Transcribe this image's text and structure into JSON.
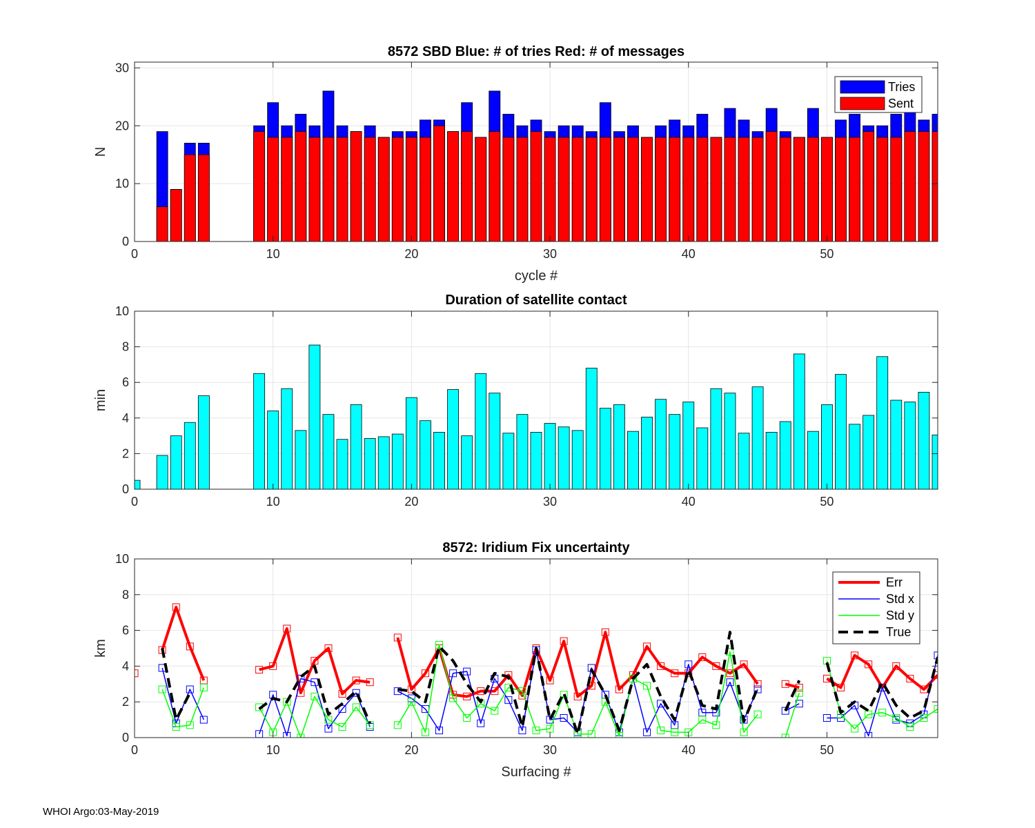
{
  "footer": "WHOI Argo:03-May-2019",
  "chart_data": [
    {
      "type": "bar",
      "stacking": "overlay",
      "title": "8572 SBD  Blue: # of tries   Red: # of messages",
      "xlabel": "cycle #",
      "ylabel": "N",
      "xlim": [
        0,
        58
      ],
      "ylim": [
        0,
        31
      ],
      "xticks": [
        0,
        10,
        20,
        30,
        40,
        50
      ],
      "yticks": [
        0,
        10,
        20,
        30
      ],
      "grid": true,
      "legend_position": "top-right",
      "colors": {
        "tries": "#0000ff",
        "sent": "#ff0000"
      },
      "x": [
        2,
        3,
        4,
        5,
        9,
        10,
        11,
        12,
        13,
        14,
        15,
        16,
        17,
        18,
        19,
        20,
        21,
        22,
        23,
        24,
        25,
        26,
        27,
        28,
        29,
        30,
        31,
        32,
        33,
        34,
        35,
        36,
        37,
        38,
        39,
        40,
        41,
        42,
        43,
        44,
        45,
        46,
        47,
        48,
        49,
        50,
        51,
        52,
        53,
        54,
        55,
        56,
        57,
        58
      ],
      "series": [
        {
          "name": "Tries",
          "color": "#0000ff",
          "values": [
            19,
            9,
            17,
            17,
            20,
            24,
            20,
            22,
            20,
            26,
            20,
            19,
            20,
            18,
            19,
            19,
            21,
            21,
            19,
            24,
            18,
            26,
            22,
            20,
            21,
            19,
            20,
            20,
            19,
            24,
            19,
            20,
            18,
            20,
            21,
            20,
            22,
            18,
            23,
            21,
            19,
            23,
            19,
            18,
            23,
            18,
            21,
            22,
            20,
            20,
            22,
            23,
            21,
            22
          ]
        },
        {
          "name": "Sent",
          "color": "#ff0000",
          "values": [
            6,
            9,
            15,
            15,
            19,
            18,
            18,
            19,
            18,
            18,
            18,
            19,
            18,
            18,
            18,
            18,
            18,
            20,
            19,
            19,
            18,
            19,
            18,
            18,
            19,
            18,
            18,
            18,
            18,
            18,
            18,
            18,
            18,
            18,
            18,
            18,
            18,
            18,
            18,
            18,
            18,
            19,
            18,
            18,
            18,
            18,
            18,
            18,
            19,
            18,
            18,
            19,
            19,
            19
          ]
        }
      ]
    },
    {
      "type": "bar",
      "title": "Duration of satellite contact",
      "xlabel": "",
      "ylabel": "min",
      "xlim": [
        0,
        58
      ],
      "ylim": [
        0,
        10
      ],
      "xticks": [
        0,
        10,
        20,
        30,
        40,
        50
      ],
      "yticks": [
        0,
        2,
        4,
        6,
        8,
        10
      ],
      "grid": true,
      "color": "#00ffff",
      "x": [
        0,
        2,
        3,
        4,
        5,
        9,
        10,
        11,
        12,
        13,
        14,
        15,
        16,
        17,
        18,
        19,
        20,
        21,
        22,
        23,
        24,
        25,
        26,
        27,
        28,
        29,
        30,
        31,
        32,
        33,
        34,
        35,
        36,
        37,
        38,
        39,
        40,
        41,
        42,
        43,
        44,
        45,
        46,
        47,
        48,
        49,
        50,
        51,
        52,
        53,
        54,
        55,
        56,
        57,
        58
      ],
      "values": [
        0.5,
        1.9,
        3.0,
        3.75,
        5.25,
        6.5,
        4.4,
        5.65,
        3.3,
        8.1,
        4.2,
        2.8,
        4.75,
        2.85,
        2.95,
        3.1,
        5.15,
        3.85,
        3.2,
        5.6,
        3.0,
        6.5,
        5.4,
        3.15,
        4.2,
        3.2,
        3.7,
        3.5,
        3.3,
        6.8,
        4.55,
        4.75,
        3.25,
        4.05,
        5.05,
        4.2,
        4.9,
        3.45,
        5.65,
        5.4,
        3.15,
        5.75,
        3.2,
        3.8,
        7.6,
        3.25,
        4.75,
        6.45,
        3.65,
        4.15,
        7.45,
        5.0,
        4.9,
        5.45,
        3.05
      ]
    },
    {
      "type": "line",
      "title": "8572: Iridium Fix uncertainty",
      "xlabel": "Surfacing #",
      "ylabel": "km",
      "xlim": [
        0,
        58
      ],
      "ylim": [
        0,
        10
      ],
      "xticks": [
        0,
        10,
        20,
        30,
        40,
        50
      ],
      "yticks": [
        0,
        2,
        4,
        6,
        8,
        10
      ],
      "grid": true,
      "legend_position": "top-right",
      "series": [
        {
          "name": "Err",
          "color": "#ff0000",
          "style": "solid",
          "width": 4,
          "markers": true,
          "values": [
            3.6,
            null,
            4.9,
            7.3,
            5.1,
            3.2,
            null,
            null,
            null,
            3.8,
            4.0,
            6.1,
            2.5,
            4.3,
            5.0,
            2.45,
            3.2,
            3.1,
            null,
            5.6,
            2.7,
            3.6,
            5.0,
            2.4,
            2.3,
            2.6,
            2.6,
            3.5,
            2.35,
            5.0,
            3.2,
            5.4,
            2.3,
            2.9,
            5.9,
            2.7,
            3.5,
            5.1,
            4.0,
            3.6,
            3.6,
            4.5,
            4.0,
            3.6,
            4.1,
            3.0,
            null,
            3.0,
            2.8,
            null,
            3.3,
            2.8,
            4.6,
            4.1,
            2.8,
            4.0,
            3.3,
            2.7,
            3.5
          ]
        },
        {
          "name": "Std x",
          "color": "#0000ff",
          "style": "solid",
          "width": 1.5,
          "markers": true,
          "values": [
            null,
            null,
            3.9,
            0.8,
            2.7,
            1.0,
            null,
            null,
            null,
            0.2,
            2.4,
            0.1,
            3.3,
            3.1,
            0.5,
            1.6,
            2.5,
            0.6,
            null,
            2.6,
            2.2,
            1.6,
            0.4,
            3.6,
            3.7,
            0.8,
            3.3,
            2.1,
            0.4,
            4.9,
            1.0,
            1.1,
            0.3,
            3.9,
            2.4,
            0.3,
            3.3,
            0.3,
            1.9,
            0.7,
            4.1,
            1.4,
            1.4,
            3.1,
            1.0,
            2.7,
            null,
            1.5,
            1.9,
            null,
            1.1,
            1.1,
            1.8,
            0.1,
            2.8,
            1.0,
            0.8,
            1.3,
            4.6
          ]
        },
        {
          "name": "Std y",
          "color": "#00ff00",
          "style": "solid",
          "width": 1.5,
          "markers": true,
          "values": [
            null,
            null,
            2.7,
            0.6,
            0.7,
            2.8,
            null,
            null,
            null,
            1.7,
            0.3,
            2.0,
            0.0,
            2.3,
            1.0,
            0.6,
            1.7,
            0.7,
            null,
            0.7,
            2.0,
            0.3,
            5.2,
            2.2,
            1.1,
            1.9,
            1.5,
            2.8,
            2.6,
            0.4,
            0.5,
            2.4,
            0.2,
            0.2,
            2.0,
            0.1,
            3.3,
            2.9,
            0.4,
            0.3,
            0.3,
            1.0,
            0.7,
            4.8,
            0.3,
            1.3,
            null,
            0.0,
            2.5,
            null,
            4.3,
            1.3,
            0.5,
            1.3,
            1.4,
            1.1,
            0.6,
            1.1,
            1.6
          ]
        },
        {
          "name": "True",
          "color": "#000000",
          "style": "dashed",
          "width": 4,
          "markers": false,
          "values": [
            null,
            null,
            5.0,
            1.0,
            2.5,
            null,
            null,
            null,
            null,
            1.6,
            2.2,
            2.0,
            3.4,
            4.0,
            1.3,
            1.9,
            2.6,
            0.8,
            null,
            2.7,
            2.6,
            2.0,
            5.1,
            4.3,
            3.0,
            2.0,
            3.6,
            3.4,
            0.6,
            5.0,
            1.0,
            2.5,
            0.2,
            3.8,
            2.4,
            0.4,
            3.3,
            4.1,
            2.3,
            1.0,
            3.8,
            1.8,
            1.6,
            5.9,
            0.9,
            2.8,
            null,
            1.5,
            3.2,
            null,
            4.2,
            1.4,
            2.0,
            1.5,
            3.1,
            1.8,
            1.1,
            1.5,
            4.5
          ]
        }
      ]
    }
  ]
}
